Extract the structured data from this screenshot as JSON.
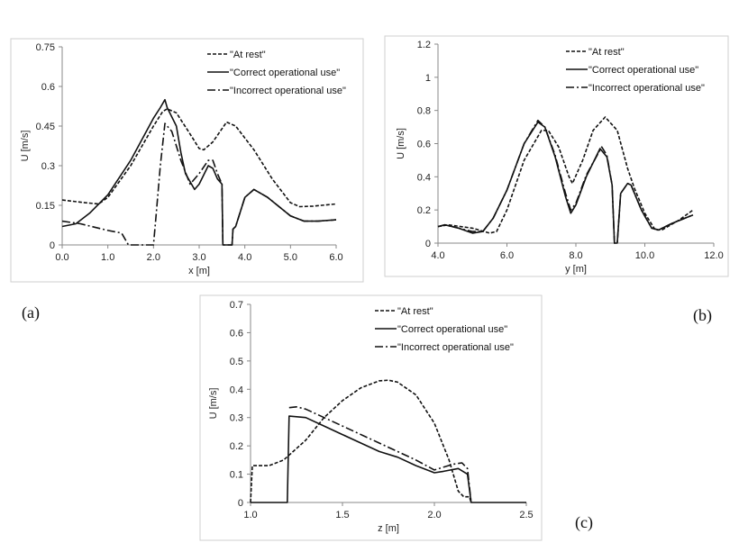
{
  "panel_labels": [
    "(a)",
    "(b)",
    "(c)"
  ],
  "chart_data": [
    {
      "type": "line",
      "xlabel": "x [m]",
      "ylabel": "U [m/s]",
      "xlim": [
        0,
        6
      ],
      "ylim": [
        0,
        0.75
      ],
      "xticks": [
        "0.0",
        "1.0",
        "2.0",
        "3.0",
        "4.0",
        "5.0",
        "6.0"
      ],
      "yticks": [
        "0",
        "0.15",
        "0.3",
        "0.45",
        "0.6",
        "0.75"
      ],
      "grid": false,
      "legend": "top-right",
      "series": [
        {
          "name": "\"At rest\"",
          "style": "dashed",
          "x": [
            0,
            0.5,
            0.8,
            1.0,
            1.5,
            2.0,
            2.2,
            2.3,
            2.5,
            2.8,
            3.0,
            3.1,
            3.3,
            3.6,
            3.8,
            4.2,
            4.6,
            5.0,
            5.2,
            5.5,
            6.0
          ],
          "y": [
            0.17,
            0.16,
            0.155,
            0.18,
            0.3,
            0.45,
            0.505,
            0.515,
            0.5,
            0.42,
            0.365,
            0.36,
            0.39,
            0.465,
            0.45,
            0.36,
            0.25,
            0.16,
            0.145,
            0.147,
            0.155
          ]
        },
        {
          "name": "\"Correct operational use\"",
          "style": "solid",
          "x": [
            0,
            0.3,
            0.6,
            1.0,
            1.5,
            2.0,
            2.15,
            2.25,
            2.3,
            2.5,
            2.6,
            2.7,
            2.9,
            3.0,
            3.2,
            3.3,
            3.4,
            3.5,
            3.52,
            3.72,
            3.74,
            3.8,
            4.0,
            4.2,
            4.5,
            5.0,
            5.3,
            5.6,
            6.0
          ],
          "y": [
            0.07,
            0.08,
            0.12,
            0.19,
            0.32,
            0.48,
            0.52,
            0.55,
            0.52,
            0.45,
            0.35,
            0.27,
            0.21,
            0.23,
            0.3,
            0.29,
            0.25,
            0.23,
            0,
            0,
            0.06,
            0.07,
            0.18,
            0.21,
            0.18,
            0.11,
            0.09,
            0.09,
            0.095
          ]
        },
        {
          "name": "\"Incorrect operational use\"",
          "style": "dashdot",
          "x": [
            0,
            0.4,
            1.0,
            1.3,
            1.45,
            2.0,
            2.05,
            2.15,
            2.25,
            2.4,
            2.6,
            2.8,
            3.0,
            3.2,
            3.3,
            3.4,
            3.5,
            3.52,
            3.72,
            3.74,
            3.8,
            4.0,
            4.2,
            4.5,
            5.0,
            5.3,
            5.6,
            6.0
          ],
          "y": [
            0.09,
            0.08,
            0.055,
            0.045,
            0,
            0,
            0.1,
            0.3,
            0.46,
            0.43,
            0.32,
            0.23,
            0.27,
            0.32,
            0.32,
            0.27,
            0.23,
            0,
            0,
            0.06,
            0.07,
            0.18,
            0.21,
            0.18,
            0.11,
            0.09,
            0.09,
            0.095
          ]
        }
      ]
    },
    {
      "type": "line",
      "xlabel": "y [m]",
      "ylabel": "U [m/s]",
      "xlim": [
        4,
        12
      ],
      "ylim": [
        0,
        1.2
      ],
      "xticks": [
        "4.0",
        "6.0",
        "8.0",
        "10.0",
        "12.0"
      ],
      "yticks": [
        "0",
        "0.2",
        "0.4",
        "0.6",
        "0.8",
        "1",
        "1.2"
      ],
      "grid": false,
      "legend": "top-right",
      "series": [
        {
          "name": "\"At rest\"",
          "style": "dashed",
          "x": [
            4.0,
            4.3,
            5.0,
            5.5,
            5.7,
            6.0,
            6.5,
            7.0,
            7.2,
            7.5,
            7.8,
            7.9,
            8.2,
            8.5,
            8.85,
            9.2,
            9.5,
            9.7,
            10.0,
            10.3,
            10.5,
            11.0,
            11.4
          ],
          "y": [
            0.1,
            0.11,
            0.09,
            0.06,
            0.07,
            0.2,
            0.5,
            0.68,
            0.68,
            0.58,
            0.4,
            0.36,
            0.5,
            0.68,
            0.76,
            0.68,
            0.45,
            0.33,
            0.18,
            0.08,
            0.08,
            0.14,
            0.2
          ]
        },
        {
          "name": "\"Correct operational use\"",
          "style": "solid",
          "x": [
            4.0,
            4.2,
            4.6,
            5.0,
            5.3,
            5.6,
            6.0,
            6.5,
            6.9,
            7.1,
            7.4,
            7.7,
            7.85,
            8.0,
            8.3,
            8.7,
            8.9,
            9.05,
            9.12,
            9.2,
            9.3,
            9.5,
            9.6,
            9.9,
            10.2,
            10.4,
            10.8,
            11.4
          ],
          "y": [
            0.1,
            0.11,
            0.09,
            0.06,
            0.07,
            0.15,
            0.32,
            0.6,
            0.73,
            0.7,
            0.52,
            0.28,
            0.18,
            0.23,
            0.4,
            0.57,
            0.52,
            0.35,
            0,
            0,
            0.3,
            0.36,
            0.35,
            0.2,
            0.09,
            0.08,
            0.12,
            0.17
          ]
        },
        {
          "name": "\"Incorrect operational use\"",
          "style": "dashdot",
          "x": [
            4.0,
            4.2,
            4.6,
            5.0,
            5.3,
            5.6,
            6.0,
            6.5,
            6.9,
            7.1,
            7.4,
            7.7,
            7.85,
            8.0,
            8.3,
            8.75,
            8.9,
            9.05,
            9.12,
            9.2,
            9.3,
            9.5,
            9.6,
            9.9,
            10.2,
            10.4,
            10.8,
            11.4
          ],
          "y": [
            0.1,
            0.11,
            0.09,
            0.07,
            0.07,
            0.15,
            0.32,
            0.6,
            0.74,
            0.7,
            0.53,
            0.3,
            0.2,
            0.24,
            0.41,
            0.58,
            0.53,
            0.35,
            0,
            0,
            0.3,
            0.36,
            0.35,
            0.2,
            0.09,
            0.08,
            0.12,
            0.17
          ]
        }
      ]
    },
    {
      "type": "line",
      "xlabel": "z [m]",
      "ylabel": "U [m/s]",
      "xlim": [
        1.0,
        2.5
      ],
      "ylim": [
        0,
        0.7
      ],
      "xticks": [
        "1.0",
        "1.5",
        "2.0",
        "2.5"
      ],
      "yticks": [
        "0",
        "0.1",
        "0.2",
        "0.3",
        "0.4",
        "0.5",
        "0.6",
        "0.7"
      ],
      "grid": false,
      "legend": "top-right",
      "series": [
        {
          "name": "\"At rest\"",
          "style": "dashed",
          "x": [
            1.0,
            1.01,
            1.1,
            1.18,
            1.3,
            1.4,
            1.5,
            1.6,
            1.7,
            1.75,
            1.8,
            1.9,
            2.0,
            2.08,
            2.13,
            2.16,
            2.19,
            2.2
          ],
          "y": [
            0,
            0.13,
            0.13,
            0.15,
            0.22,
            0.3,
            0.36,
            0.405,
            0.43,
            0.432,
            0.425,
            0.38,
            0.28,
            0.15,
            0.04,
            0.02,
            0.02,
            0
          ]
        },
        {
          "name": "\"Correct operational use\"",
          "style": "solid",
          "x": [
            1.0,
            1.2,
            1.21,
            1.3,
            1.4,
            1.5,
            1.6,
            1.7,
            1.8,
            1.9,
            2.0,
            2.05,
            2.13,
            2.18,
            2.2,
            2.5
          ],
          "y": [
            0,
            0,
            0.305,
            0.3,
            0.27,
            0.24,
            0.21,
            0.18,
            0.16,
            0.13,
            0.105,
            0.11,
            0.12,
            0.1,
            0,
            0
          ]
        },
        {
          "name": "\"Incorrect operational use\"",
          "style": "dashdot",
          "x": [
            1.21,
            1.25,
            1.3,
            1.5,
            1.7,
            1.9,
            2.0,
            2.1,
            2.15,
            2.18,
            2.2
          ],
          "y": [
            0.335,
            0.338,
            0.33,
            0.27,
            0.21,
            0.15,
            0.115,
            0.135,
            0.14,
            0.12,
            0
          ]
        }
      ]
    }
  ]
}
